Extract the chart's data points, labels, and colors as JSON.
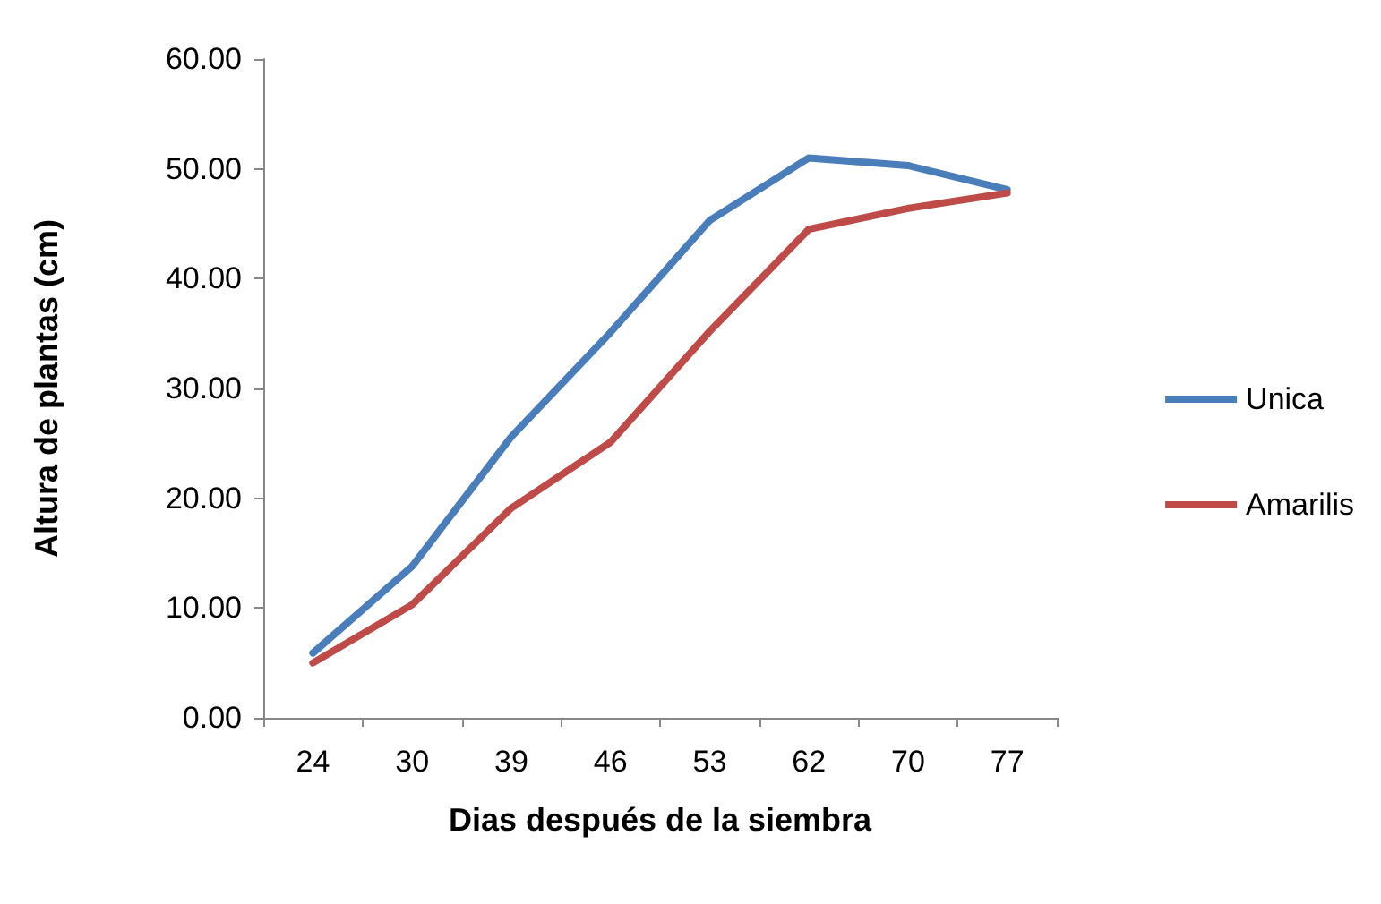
{
  "chart_data": {
    "type": "line",
    "xlabel": "Dias después de la siembra",
    "ylabel": "Altura de plantas (cm)",
    "categories": [
      "24",
      "30",
      "39",
      "46",
      "53",
      "62",
      "70",
      "77"
    ],
    "series": [
      {
        "name": "Unica",
        "color": "#4a7ebb",
        "values": [
          5.9,
          13.8,
          25.6,
          35.1,
          45.3,
          51.0,
          50.3,
          48.1
        ]
      },
      {
        "name": "Amarilis",
        "color": "#be4b48",
        "values": [
          5.0,
          10.3,
          19.1,
          25.1,
          35.2,
          44.5,
          46.4,
          47.8
        ]
      }
    ],
    "ylim": [
      0,
      60
    ],
    "yticks": [
      {
        "value": 0,
        "label": "0.00"
      },
      {
        "value": 10,
        "label": "10.00"
      },
      {
        "value": 20,
        "label": "20.00"
      },
      {
        "value": 30,
        "label": "30.00"
      },
      {
        "value": 40,
        "label": "40.00"
      },
      {
        "value": 50,
        "label": "50.00"
      },
      {
        "value": 60,
        "label": "60.00"
      }
    ],
    "grid": false,
    "legend": "right",
    "marker": "none",
    "line_style": "solid"
  }
}
